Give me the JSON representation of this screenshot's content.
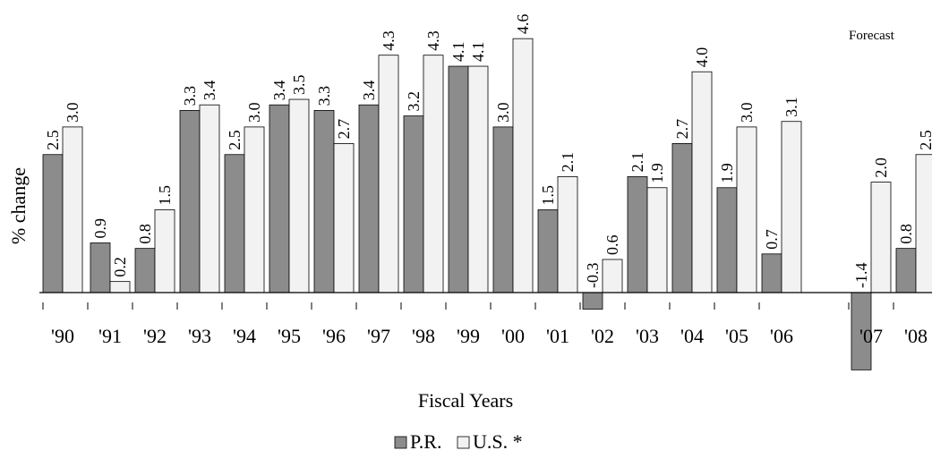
{
  "chart_data": {
    "type": "bar",
    "title": "",
    "xlabel": "Fiscal Years",
    "ylabel": "% change",
    "annotation": "Forecast",
    "categories": [
      "'90",
      "'91",
      "'92",
      "'93",
      "'94",
      "'95",
      "'96",
      "'97",
      "'98",
      "'99",
      "'00",
      "'01",
      "'02",
      "'03",
      "'04",
      "'05",
      "'06",
      "'07",
      "'08"
    ],
    "series": [
      {
        "name": "P.R.",
        "color": "#8c8c8c",
        "values": [
          2.5,
          0.9,
          0.8,
          3.3,
          2.5,
          3.4,
          3.3,
          3.4,
          3.2,
          4.1,
          3.0,
          1.5,
          -0.3,
          2.1,
          2.7,
          1.9,
          0.7,
          -1.4,
          0.8
        ]
      },
      {
        "name": "U.S. *",
        "color": "#f2f2f2",
        "values": [
          3.0,
          0.2,
          1.5,
          3.4,
          3.0,
          3.5,
          2.7,
          4.3,
          4.3,
          4.1,
          4.6,
          2.1,
          0.6,
          1.9,
          4.0,
          3.0,
          3.1,
          2.0,
          2.5
        ]
      }
    ],
    "data_labels": {
      "P.R.": [
        "2.5",
        "0.9",
        "0.8",
        "3.3",
        "2.5",
        "3.4",
        "3.3",
        "3.4",
        "3.2",
        "4.1",
        "3.0",
        "1.5",
        "-0.3",
        "2.1",
        "2.7",
        "1.9",
        "0.7",
        "-1.4",
        "0.8"
      ],
      "U.S. *": [
        "3.0",
        "0.2",
        "1.5",
        "3.4",
        "3.0",
        "3.5",
        "2.7",
        "4.3",
        "4.3",
        "4.1",
        "4.6",
        "2.1",
        "0.6",
        "1.9",
        "4.0",
        "3.0",
        "3.1",
        "2.0",
        "2.5"
      ]
    },
    "ylim": [
      -1.4,
      4.6
    ],
    "grid": false,
    "legend_position": "bottom-center"
  }
}
